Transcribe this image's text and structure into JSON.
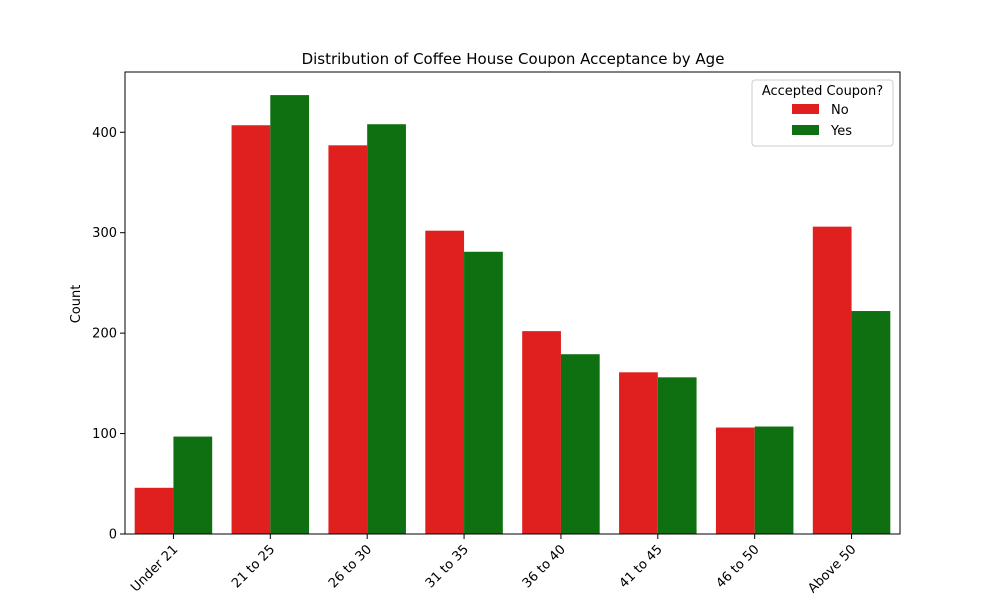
{
  "chart_data": {
    "type": "bar",
    "title": "Distribution of Coffee House Coupon Acceptance by Age",
    "xlabel": "",
    "ylabel": "Count",
    "categories": [
      "Under 21",
      "21 to 25",
      "26 to 30",
      "31 to 35",
      "36 to 40",
      "41 to 45",
      "46 to 50",
      "Above 50"
    ],
    "series": [
      {
        "name": "No",
        "color": "#e01f1f",
        "values": [
          46,
          407,
          387,
          302,
          202,
          161,
          106,
          306
        ]
      },
      {
        "name": "Yes",
        "color": "#0e7010",
        "values": [
          97,
          437,
          408,
          281,
          179,
          156,
          107,
          222
        ]
      }
    ],
    "ylim": [
      0,
      460
    ],
    "yticks": [
      0,
      100,
      200,
      300,
      400
    ],
    "grid": false,
    "legend": {
      "title": "Accepted Coupon?",
      "placement": "top-right"
    }
  }
}
